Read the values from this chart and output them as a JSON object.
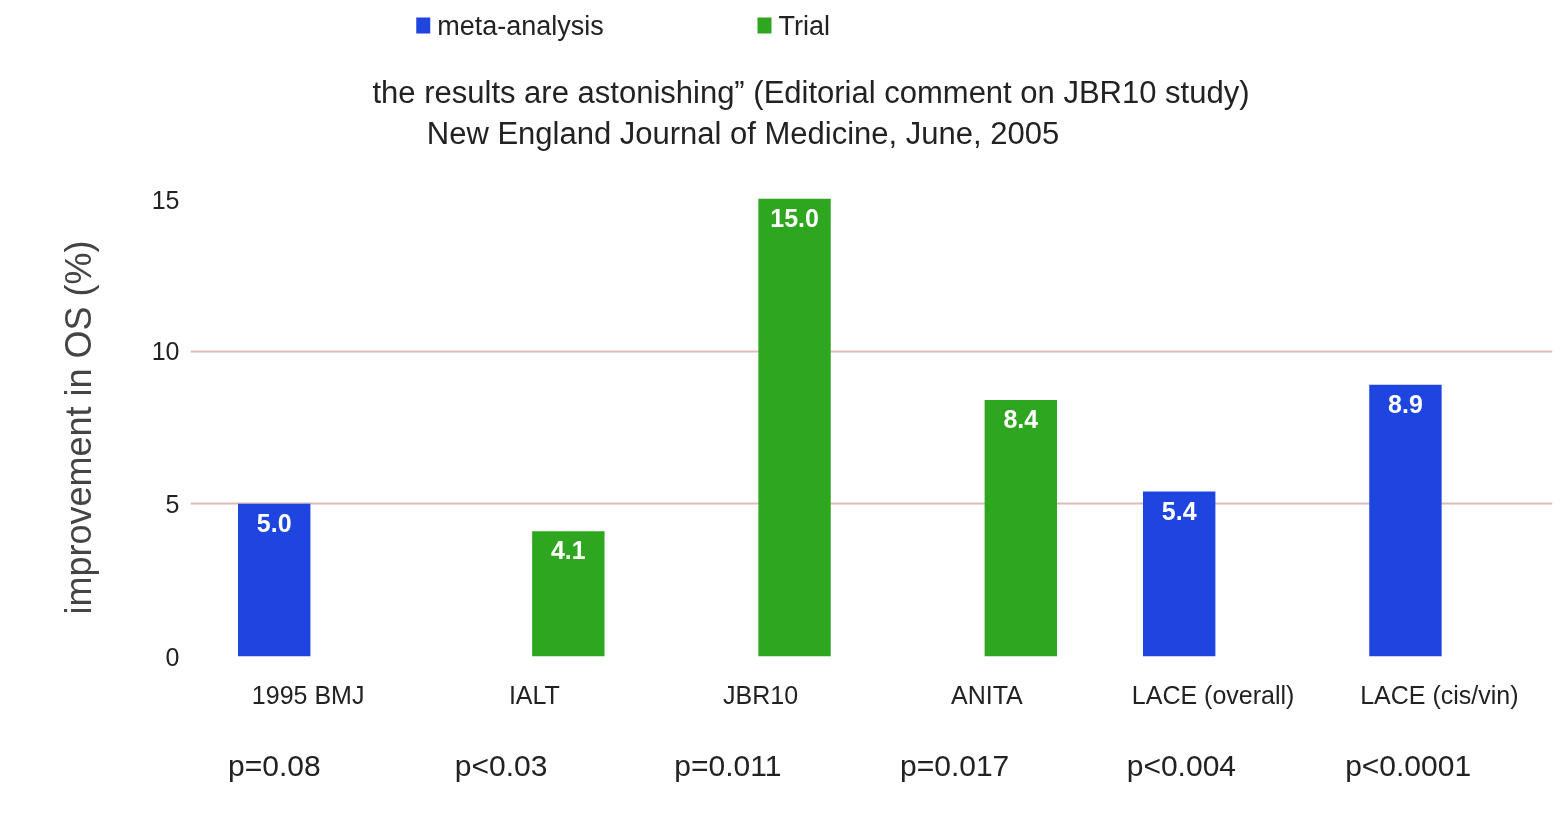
{
  "chart_data": {
    "type": "bar",
    "title": "the results are astonishing”  (Editorial comment on JBR10 study)",
    "subtitle": "New England Journal of Medicine, June, 2005",
    "ylabel": "improvement in OS (%)",
    "categories": [
      "1995 BMJ",
      "IALT",
      "JBR10",
      "ANITA",
      "LACE (overall)",
      "LACE (cis/vin)"
    ],
    "series": [
      {
        "name": "meta-analysis",
        "color": "#1f45e0",
        "values": [
          5.0,
          null,
          null,
          null,
          5.4,
          8.9
        ],
        "value_labels": [
          "5.0",
          null,
          null,
          null,
          "5.4",
          "8.9"
        ]
      },
      {
        "name": "Trial",
        "color": "#2fa61f",
        "values": [
          null,
          4.1,
          15.0,
          8.4,
          null,
          null
        ],
        "value_labels": [
          null,
          "4.1",
          "15.0",
          "8.4",
          null,
          null
        ]
      }
    ],
    "ylim": [
      0,
      15
    ],
    "yticks": [
      0,
      5,
      10,
      15
    ],
    "grid": "y",
    "legend": "top left",
    "annotations": [
      "p=0.08",
      "p<0.03",
      "p=0.011",
      "p=0.017",
      "p<0.004",
      "p<0.0001"
    ]
  }
}
